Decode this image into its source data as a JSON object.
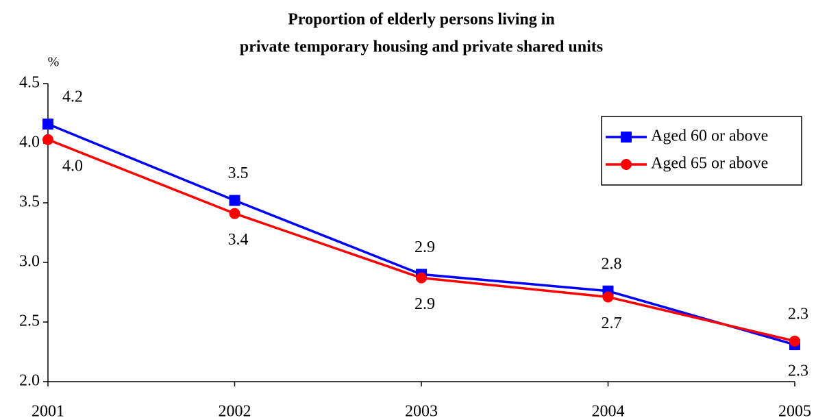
{
  "chart_data": {
    "type": "line",
    "title": [
      "Proportion of elderly persons living in",
      "private temporary housing and private shared units"
    ],
    "y_label": "%",
    "x": [
      2001,
      2002,
      2003,
      2004,
      2005
    ],
    "xlim": [
      2001,
      2005
    ],
    "xticks": [
      2001,
      2002,
      2003,
      2004,
      2005
    ],
    "ylim": [
      2,
      4.5
    ],
    "yticks": [
      {
        "value": 2,
        "label": "2.0"
      },
      2.5,
      {
        "value": 3,
        "label": "3.0"
      },
      3.5,
      {
        "value": 4,
        "label": "4.0"
      },
      4.5
    ],
    "legend": "upper right",
    "series": [
      {
        "name": "Aged 60 or above",
        "color": "#0000ff",
        "marker": "square",
        "values": [
          4.16,
          3.52,
          2.9,
          2.76,
          2.31
        ],
        "value_labels": [
          "4.2",
          "3.5",
          "2.9",
          "2.8",
          "2.3"
        ]
      },
      {
        "name": "Aged 65 or above",
        "color": "#ff0000",
        "marker": "circle",
        "values": [
          4.03,
          3.41,
          2.87,
          2.71,
          2.34
        ],
        "value_labels": [
          "4.0",
          "3.4",
          "2.9",
          "2.7",
          "2.3"
        ]
      }
    ]
  }
}
